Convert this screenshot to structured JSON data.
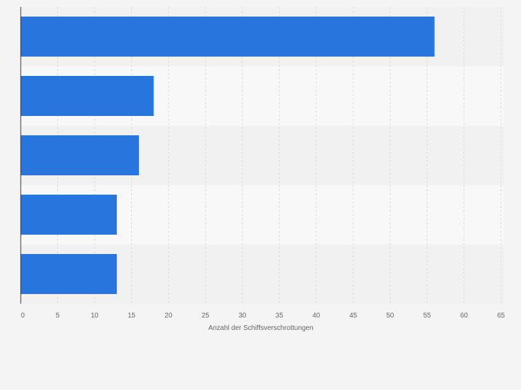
{
  "chart_data": {
    "type": "bar",
    "orientation": "horizontal",
    "categories": [
      "",
      "",
      "",
      "",
      ""
    ],
    "values": [
      56,
      18,
      16,
      13,
      13
    ],
    "title": "",
    "xlabel": "Anzahl der Schiffsverschrottungen",
    "ylabel": "",
    "xlim": [
      0,
      65
    ],
    "x_ticks": [
      "0",
      "5",
      "10",
      "15",
      "20",
      "25",
      "30",
      "35",
      "40",
      "45",
      "50",
      "55",
      "60",
      "65"
    ],
    "grid": true,
    "legend": "none",
    "colors": {
      "bar": "#2876dd",
      "band_dark": "#f1f1f1",
      "band_light": "#f8f8f8",
      "background": "#f4f4f4",
      "grid": "#d9d9d9",
      "axis": "#333333",
      "tick_text": "#666666"
    }
  }
}
